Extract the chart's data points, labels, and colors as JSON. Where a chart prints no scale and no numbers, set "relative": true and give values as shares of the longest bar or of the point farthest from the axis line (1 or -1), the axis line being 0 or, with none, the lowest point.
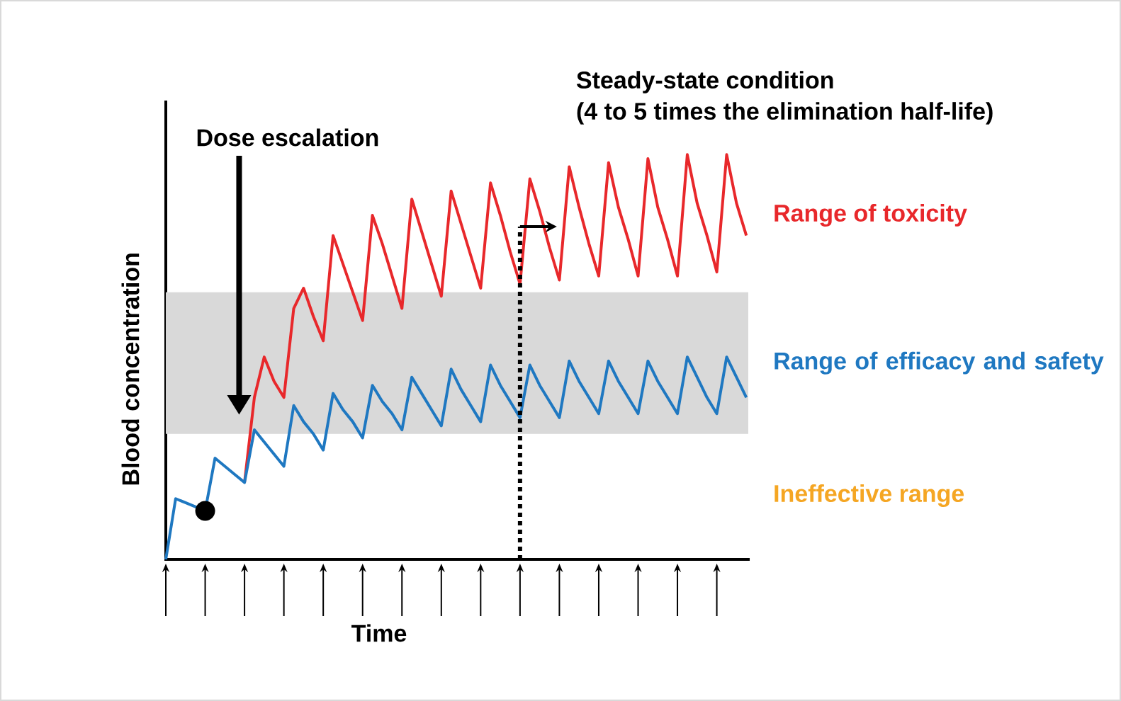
{
  "chart_data": {
    "type": "line",
    "relative": true,
    "xlabel": "Time",
    "ylabel": "Blood concentration",
    "categories": [
      null,
      null,
      null,
      null,
      null,
      null,
      null,
      null,
      null,
      null,
      null,
      null,
      null,
      null,
      null,
      null,
      null,
      null,
      null,
      null,
      null,
      null,
      null,
      null,
      null,
      null,
      null,
      null,
      null,
      null,
      null,
      null,
      null,
      null,
      null,
      null,
      null,
      null,
      null,
      null,
      null,
      null,
      null,
      null,
      null,
      null,
      null,
      null,
      null,
      null,
      null,
      null,
      null,
      null,
      null,
      null,
      null,
      null,
      null,
      null
    ],
    "series": [
      {
        "color": "#e8282b",
        "values": [
          null,
          null,
          null,
          null,
          null,
          null,
          null,
          null,
          0.19,
          0.4,
          0.5,
          0.44,
          0.4,
          0.62,
          0.67,
          0.6,
          0.54,
          0.8,
          0.73,
          0.66,
          0.59,
          0.85,
          0.78,
          0.7,
          0.62,
          0.89,
          0.81,
          0.73,
          0.65,
          0.91,
          0.83,
          0.75,
          0.67,
          0.93,
          0.85,
          0.76,
          0.68,
          0.94,
          0.86,
          0.77,
          0.69,
          0.97,
          0.87,
          0.78,
          0.7,
          0.98,
          0.87,
          0.79,
          0.7,
          0.99,
          0.87,
          0.79,
          0.7,
          1.0,
          0.88,
          0.8,
          0.71,
          1.0,
          0.88,
          0.8
        ]
      },
      {
        "color": "#1f78c1",
        "values": [
          0.0,
          0.15,
          0.14,
          0.13,
          0.12,
          0.25,
          0.23,
          0.21,
          0.19,
          0.32,
          0.29,
          0.26,
          0.23,
          0.38,
          0.34,
          0.31,
          0.27,
          0.41,
          0.37,
          0.34,
          0.3,
          0.43,
          0.39,
          0.36,
          0.32,
          0.45,
          0.41,
          0.37,
          0.33,
          0.47,
          0.42,
          0.38,
          0.34,
          0.48,
          0.43,
          0.39,
          0.35,
          0.48,
          0.43,
          0.39,
          0.35,
          0.49,
          0.44,
          0.4,
          0.36,
          0.49,
          0.44,
          0.4,
          0.36,
          0.49,
          0.44,
          0.4,
          0.36,
          0.5,
          0.45,
          0.4,
          0.36,
          0.5,
          0.45,
          0.4
        ]
      }
    ],
    "bands": [
      {
        "axis": "y",
        "from": 0.31,
        "to": 0.66,
        "label": "Range of efficacy and safety",
        "color": "#d9d9d9"
      }
    ],
    "annotations": [
      "Dose escalation",
      "Steady-state condition",
      "(4 to 5 times the elimination half-life)",
      "Range of toxicity",
      "Ineffective range"
    ]
  }
}
